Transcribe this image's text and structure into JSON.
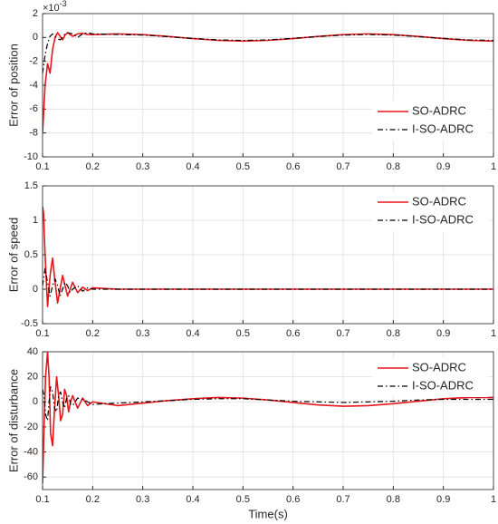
{
  "chart_data": [
    {
      "type": "line",
      "ylabel": "Error of position",
      "y_multiplier": {
        "base": "×10",
        "exponent": "-3"
      },
      "x": [
        0.1,
        0.105,
        0.11,
        0.115,
        0.12,
        0.125,
        0.13,
        0.135,
        0.14,
        0.145,
        0.15,
        0.16,
        0.17,
        0.18,
        0.19,
        0.2,
        0.25,
        0.3,
        0.35,
        0.4,
        0.45,
        0.5,
        0.55,
        0.6,
        0.65,
        0.7,
        0.75,
        0.8,
        0.85,
        0.9,
        0.95,
        1.0
      ],
      "series": [
        {
          "name": "SO-ADRC",
          "color": "#e8151b",
          "line_style": "solid",
          "values": [
            -8,
            -4,
            -2.2,
            -3,
            -1,
            0,
            0.4,
            0.1,
            -0.2,
            0.2,
            0.4,
            0.1,
            0.3,
            0.35,
            0.25,
            0.24,
            0.3,
            0.24,
            0.09,
            -0.09,
            -0.24,
            -0.3,
            -0.24,
            -0.09,
            0.09,
            0.24,
            0.3,
            0.24,
            0.09,
            -0.09,
            -0.24,
            -0.3
          ]
        },
        {
          "name": "I-SO-ADRC",
          "color": "#000000",
          "line_style": "dashdot",
          "values": [
            -3,
            -1.5,
            -0.5,
            0.1,
            0.3,
            0.1,
            -0.1,
            -0.2,
            0,
            0.3,
            0.4,
            0.3,
            0,
            0.3,
            0.4,
            0.3,
            0.25,
            0.2,
            0.07,
            -0.08,
            -0.2,
            -0.25,
            -0.2,
            -0.07,
            0.08,
            0.2,
            0.25,
            0.2,
            0.07,
            -0.08,
            -0.2,
            -0.25
          ]
        }
      ],
      "xlim": [
        0.1,
        1
      ],
      "xticks": [
        0.1,
        0.2,
        0.3,
        0.4,
        0.5,
        0.6,
        0.7,
        0.8,
        0.9,
        1
      ],
      "ylim": [
        -10,
        2
      ],
      "yticks": [
        -10,
        -8,
        -6,
        -4,
        -2,
        0,
        2
      ],
      "grid": true,
      "legend": "southeast"
    },
    {
      "type": "line",
      "ylabel": "Error of speed",
      "x": [
        0.1,
        0.102,
        0.105,
        0.11,
        0.115,
        0.12,
        0.125,
        0.13,
        0.135,
        0.14,
        0.145,
        0.15,
        0.155,
        0.16,
        0.17,
        0.18,
        0.19,
        0.2,
        0.25,
        0.3,
        0.4,
        0.5,
        0.6,
        0.7,
        0.8,
        0.9,
        1.0
      ],
      "series": [
        {
          "name": "SO-ADRC",
          "color": "#e8151b",
          "line_style": "solid",
          "values": [
            1.2,
            1.1,
            0.5,
            -0.25,
            0.2,
            0.45,
            0.1,
            -0.2,
            0,
            0.2,
            0.05,
            -0.1,
            0,
            0.1,
            -0.05,
            0.03,
            -0.02,
            0.02,
            0,
            0,
            0,
            0,
            0,
            0,
            0,
            0,
            0
          ]
        },
        {
          "name": "I-SO-ADRC",
          "color": "#000000",
          "line_style": "dashdot",
          "values": [
            0.05,
            0.15,
            0.3,
            0.1,
            -0.1,
            0.05,
            0.15,
            0.05,
            -0.1,
            0,
            0.1,
            0.05,
            -0.05,
            0,
            0.05,
            -0.03,
            0.02,
            0,
            0,
            0,
            0,
            0,
            0,
            0,
            0,
            0,
            0
          ]
        }
      ],
      "xlim": [
        0.1,
        1
      ],
      "xticks": [
        0.1,
        0.2,
        0.3,
        0.4,
        0.5,
        0.6,
        0.7,
        0.8,
        0.9,
        1
      ],
      "ylim": [
        -0.5,
        1.5
      ],
      "yticks": [
        -0.5,
        0,
        0.5,
        1,
        1.5
      ],
      "grid": true,
      "legend": "northeast"
    },
    {
      "type": "line",
      "ylabel": "Error of disturbance",
      "xlabel": "Time(s)",
      "x": [
        0.1,
        0.103,
        0.106,
        0.11,
        0.113,
        0.116,
        0.12,
        0.124,
        0.128,
        0.132,
        0.136,
        0.14,
        0.144,
        0.148,
        0.152,
        0.156,
        0.16,
        0.17,
        0.18,
        0.19,
        0.2,
        0.25,
        0.3,
        0.35,
        0.4,
        0.45,
        0.5,
        0.55,
        0.6,
        0.65,
        0.7,
        0.75,
        0.8,
        0.85,
        0.9,
        0.95,
        1.0
      ],
      "series": [
        {
          "name": "SO-ADRC",
          "color": "#e8151b",
          "line_style": "solid",
          "values": [
            -65,
            -20,
            20,
            40,
            20,
            -25,
            -35,
            -5,
            20,
            5,
            -15,
            -10,
            10,
            5,
            -8,
            0,
            5,
            -5,
            3,
            -3,
            0,
            -3,
            -1,
            1,
            2.5,
            3.5,
            3,
            1.5,
            -0.5,
            -2.5,
            -3.5,
            -3,
            -1.5,
            0.5,
            2.5,
            3.5,
            3.5
          ]
        },
        {
          "name": "I-SO-ADRC",
          "color": "#000000",
          "line_style": "dashdot",
          "values": [
            10,
            5,
            -10,
            -15,
            0,
            12,
            8,
            -5,
            -8,
            5,
            8,
            0,
            -5,
            3,
            5,
            -2,
            -3,
            3,
            2,
            0,
            -2,
            -1,
            0,
            1,
            2,
            2.5,
            2.5,
            1.5,
            0.5,
            0,
            -0.5,
            0,
            0.5,
            1.5,
            2,
            2,
            2
          ]
        }
      ],
      "xlim": [
        0.1,
        1
      ],
      "xticks": [
        0.1,
        0.2,
        0.3,
        0.4,
        0.5,
        0.6,
        0.7,
        0.8,
        0.9,
        1
      ],
      "ylim": [
        -70,
        40
      ],
      "yticks": [
        -60,
        -40,
        -20,
        0,
        20,
        40
      ],
      "grid": true,
      "legend": "northeast"
    }
  ]
}
